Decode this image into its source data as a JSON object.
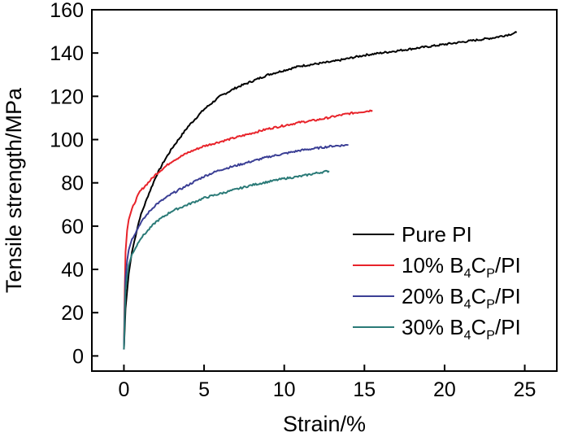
{
  "chart_data": {
    "type": "line",
    "title": "",
    "xlabel": "Strain/%",
    "ylabel": "Tensile strength/MPa",
    "xlim": [
      -2,
      27
    ],
    "ylim": [
      -7,
      160
    ],
    "xticks": [
      0,
      5,
      10,
      15,
      20,
      25
    ],
    "yticks": [
      0,
      20,
      40,
      60,
      80,
      100,
      120,
      140,
      160
    ],
    "legend_position": "bottom-right",
    "series": [
      {
        "name": "Pure PI",
        "label_parts": {
          "pre": "Pure PI"
        },
        "color": "#000000",
        "x": [
          0,
          0.1,
          0.3,
          0.5,
          0.8,
          1,
          1.5,
          2,
          2.5,
          3,
          4,
          5,
          6,
          7,
          8,
          9,
          10,
          11,
          12,
          13,
          14,
          15,
          16,
          17,
          18,
          19,
          20,
          21,
          22,
          23,
          24,
          24.5
        ],
        "y": [
          3,
          22,
          38,
          48,
          58,
          64,
          74,
          83,
          90,
          96,
          106,
          114,
          120,
          124,
          127,
          130,
          132,
          134,
          135,
          136,
          137.5,
          139,
          140,
          141,
          142,
          143,
          144,
          145,
          146,
          147,
          148.5,
          149.5
        ]
      },
      {
        "name": "10% B4CP/PI",
        "label_parts": {
          "pre": "10% B",
          "sub1": "4",
          "mid": "C",
          "sub2": "P",
          "post": "/PI"
        },
        "color": "#e8232a",
        "x": [
          0,
          0.05,
          0.1,
          0.2,
          0.3,
          0.5,
          0.8,
          1,
          1.5,
          2,
          3,
          4,
          5,
          6,
          7,
          8,
          9,
          10,
          11,
          12,
          13,
          14,
          15,
          15.5
        ],
        "y": [
          3,
          30,
          48,
          58,
          63,
          68,
          73,
          76,
          80,
          84,
          90,
          94,
          97,
          99,
          101,
          103,
          105,
          106.5,
          108,
          109,
          110.5,
          112,
          113,
          113.5
        ]
      },
      {
        "name": "20% B4CP/PI",
        "label_parts": {
          "pre": "20% B",
          "sub1": "4",
          "mid": "C",
          "sub2": "P",
          "post": "/PI"
        },
        "color": "#3b3f95",
        "x": [
          0,
          0.05,
          0.1,
          0.2,
          0.3,
          0.5,
          0.8,
          1,
          1.5,
          2,
          3,
          4,
          5,
          6,
          7,
          8,
          9,
          10,
          11,
          12,
          13,
          14
        ],
        "y": [
          3,
          22,
          36,
          44,
          49,
          54,
          58,
          61,
          66,
          70,
          75,
          79,
          83,
          86,
          88,
          90,
          92,
          93.5,
          95,
          96,
          97,
          97.5
        ]
      },
      {
        "name": "30% B4CP/PI",
        "label_parts": {
          "pre": "30% B",
          "sub1": "4",
          "mid": "C",
          "sub2": "P",
          "post": "/PI"
        },
        "color": "#2a7a77",
        "x": [
          0,
          0.05,
          0.1,
          0.2,
          0.3,
          0.5,
          0.8,
          1,
          1.5,
          2,
          3,
          4,
          5,
          6,
          7,
          8,
          9,
          10,
          11,
          12,
          12.8
        ],
        "y": [
          3,
          18,
          30,
          37,
          42,
          47,
          51,
          54,
          58,
          62,
          67,
          70,
          73,
          75,
          77,
          79,
          80.5,
          82,
          83,
          84.5,
          85.5
        ]
      }
    ]
  }
}
